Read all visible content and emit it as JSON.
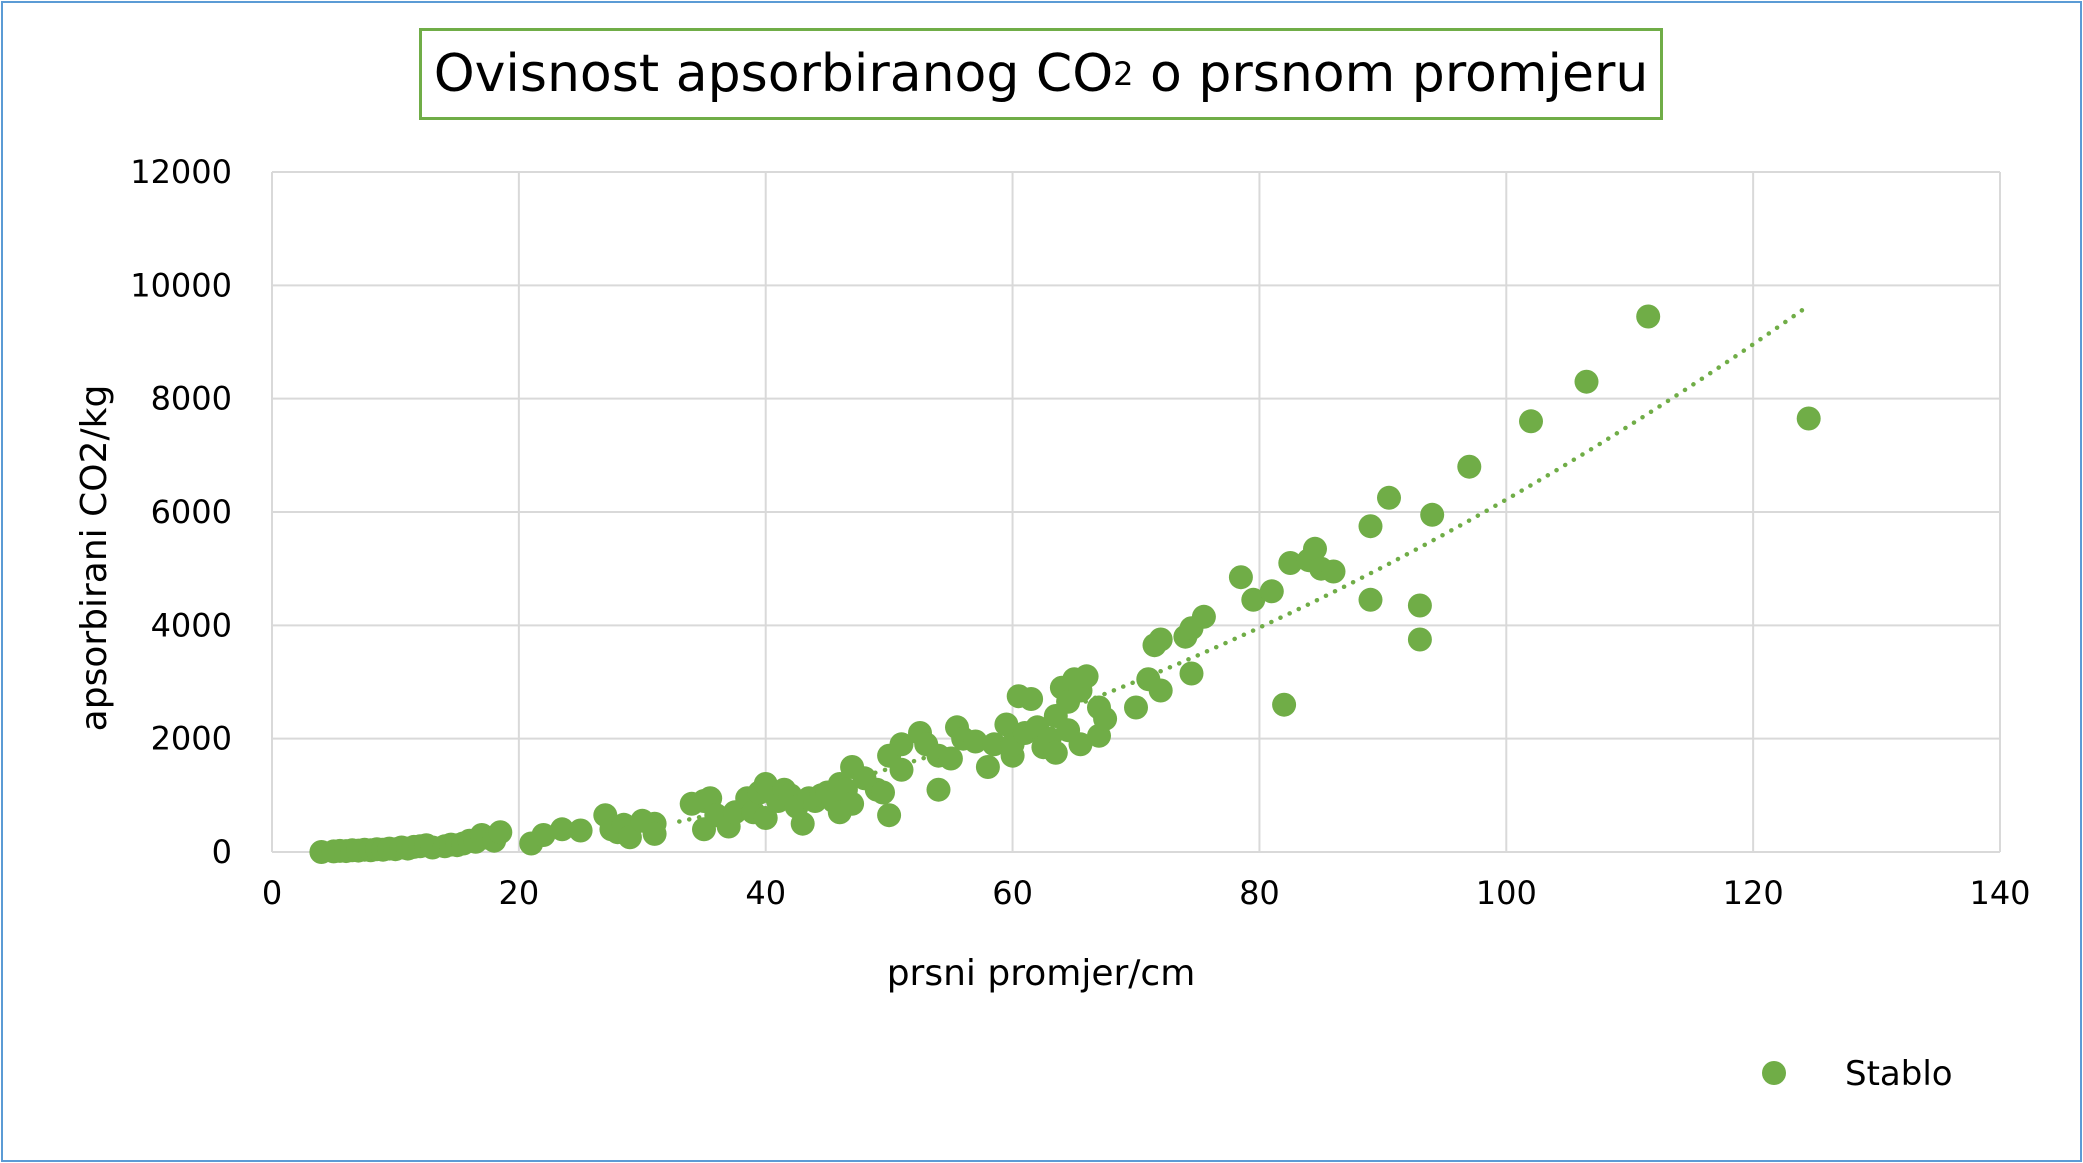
{
  "chart_data": {
    "type": "scatter",
    "title_main": "Ovisnost apsorbiranog CO",
    "title_sub": "2",
    "title_rest": " o prsnom promjeru",
    "xlabel": "prsni promjer/cm",
    "ylabel": "apsorbirani  CO2/kg",
    "xlim": [
      0,
      140
    ],
    "ylim": [
      0,
      12000
    ],
    "x_ticks": [
      "0",
      "20",
      "40",
      "60",
      "80",
      "100",
      "120",
      "140"
    ],
    "y_ticks": [
      "0",
      "2000",
      "4000",
      "6000",
      "8000",
      "10000",
      "12000"
    ],
    "grid": true,
    "legend_position": "bottom-right",
    "marker_color": "#70ad47",
    "frame_color": "#5b9bd5",
    "series": [
      {
        "name": "Stablo",
        "points": [
          [
            4,
            0
          ],
          [
            5,
            10
          ],
          [
            5.5,
            20
          ],
          [
            6,
            15
          ],
          [
            6.5,
            30
          ],
          [
            7,
            25
          ],
          [
            7.5,
            40
          ],
          [
            8,
            30
          ],
          [
            8.5,
            50
          ],
          [
            9,
            40
          ],
          [
            9.5,
            60
          ],
          [
            10,
            50
          ],
          [
            10.5,
            80
          ],
          [
            11,
            60
          ],
          [
            11.5,
            90
          ],
          [
            12,
            100
          ],
          [
            12.5,
            120
          ],
          [
            13,
            80
          ],
          [
            14,
            100
          ],
          [
            14.5,
            130
          ],
          [
            15,
            120
          ],
          [
            15.5,
            150
          ],
          [
            16,
            200
          ],
          [
            16.5,
            180
          ],
          [
            17,
            300
          ],
          [
            17.5,
            250
          ],
          [
            18,
            200
          ],
          [
            18.5,
            350
          ],
          [
            21,
            150
          ],
          [
            22,
            300
          ],
          [
            23.5,
            400
          ],
          [
            25,
            380
          ],
          [
            27,
            650
          ],
          [
            27.5,
            400
          ],
          [
            28,
            350
          ],
          [
            28.5,
            480
          ],
          [
            29,
            260
          ],
          [
            30,
            550
          ],
          [
            31,
            500
          ],
          [
            31,
            320
          ],
          [
            34,
            850
          ],
          [
            35,
            900
          ],
          [
            35.5,
            950
          ],
          [
            35,
            400
          ],
          [
            36,
            650
          ],
          [
            37,
            450
          ],
          [
            37.5,
            700
          ],
          [
            38.5,
            950
          ],
          [
            39,
            700
          ],
          [
            39.5,
            1050
          ],
          [
            40,
            1200
          ],
          [
            40,
            600
          ],
          [
            41,
            900
          ],
          [
            41.5,
            1100
          ],
          [
            42,
            1000
          ],
          [
            42.5,
            800
          ],
          [
            43,
            500
          ],
          [
            43.5,
            950
          ],
          [
            44,
            900
          ],
          [
            44.5,
            1000
          ],
          [
            45,
            1050
          ],
          [
            45.5,
            900
          ],
          [
            46,
            1200
          ],
          [
            46,
            700
          ],
          [
            46.5,
            1100
          ],
          [
            47,
            850
          ],
          [
            47,
            1500
          ],
          [
            48,
            1300
          ],
          [
            49,
            1100
          ],
          [
            49.5,
            1050
          ],
          [
            50,
            1700
          ],
          [
            50,
            650
          ],
          [
            51,
            1900
          ],
          [
            51,
            1450
          ],
          [
            52.5,
            2100
          ],
          [
            53,
            1900
          ],
          [
            54,
            1700
          ],
          [
            54,
            1100
          ],
          [
            55,
            1650
          ],
          [
            55.5,
            2200
          ],
          [
            56,
            2000
          ],
          [
            57,
            1950
          ],
          [
            58,
            1500
          ],
          [
            58.5,
            1900
          ],
          [
            59.5,
            2250
          ],
          [
            60,
            1700
          ],
          [
            60,
            1900
          ],
          [
            60.5,
            2750
          ],
          [
            61,
            2100
          ],
          [
            61.5,
            2700
          ],
          [
            62,
            2200
          ],
          [
            62.5,
            1850
          ],
          [
            63,
            2000
          ],
          [
            63.5,
            2400
          ],
          [
            63.5,
            1750
          ],
          [
            64,
            2900
          ],
          [
            64.5,
            2150
          ],
          [
            64.5,
            2650
          ],
          [
            65,
            3050
          ],
          [
            65.5,
            2850
          ],
          [
            65.5,
            1900
          ],
          [
            66,
            3100
          ],
          [
            67,
            2550
          ],
          [
            67,
            2050
          ],
          [
            67.5,
            2350
          ],
          [
            70,
            2550
          ],
          [
            71,
            3050
          ],
          [
            71.5,
            3650
          ],
          [
            72,
            3750
          ],
          [
            72,
            2850
          ],
          [
            74,
            3800
          ],
          [
            74.5,
            3950
          ],
          [
            74.5,
            3150
          ],
          [
            75.5,
            4150
          ],
          [
            78.5,
            4850
          ],
          [
            79.5,
            4450
          ],
          [
            81,
            4600
          ],
          [
            82,
            2600
          ],
          [
            82.5,
            5100
          ],
          [
            84,
            5150
          ],
          [
            84.5,
            5350
          ],
          [
            85,
            5000
          ],
          [
            86,
            4950
          ],
          [
            89,
            4450
          ],
          [
            89,
            5750
          ],
          [
            90.5,
            6250
          ],
          [
            93,
            4350
          ],
          [
            93,
            3750
          ],
          [
            94,
            5950
          ],
          [
            97,
            6800
          ],
          [
            102,
            7600
          ],
          [
            106.5,
            8300
          ],
          [
            111.5,
            9450
          ],
          [
            124.5,
            7650
          ]
        ]
      }
    ],
    "trendline": {
      "type": "polynomial",
      "style": "dotted",
      "x_range": [
        33,
        124
      ],
      "coefficients": [
        -280,
        5,
        0.6
      ]
    }
  }
}
